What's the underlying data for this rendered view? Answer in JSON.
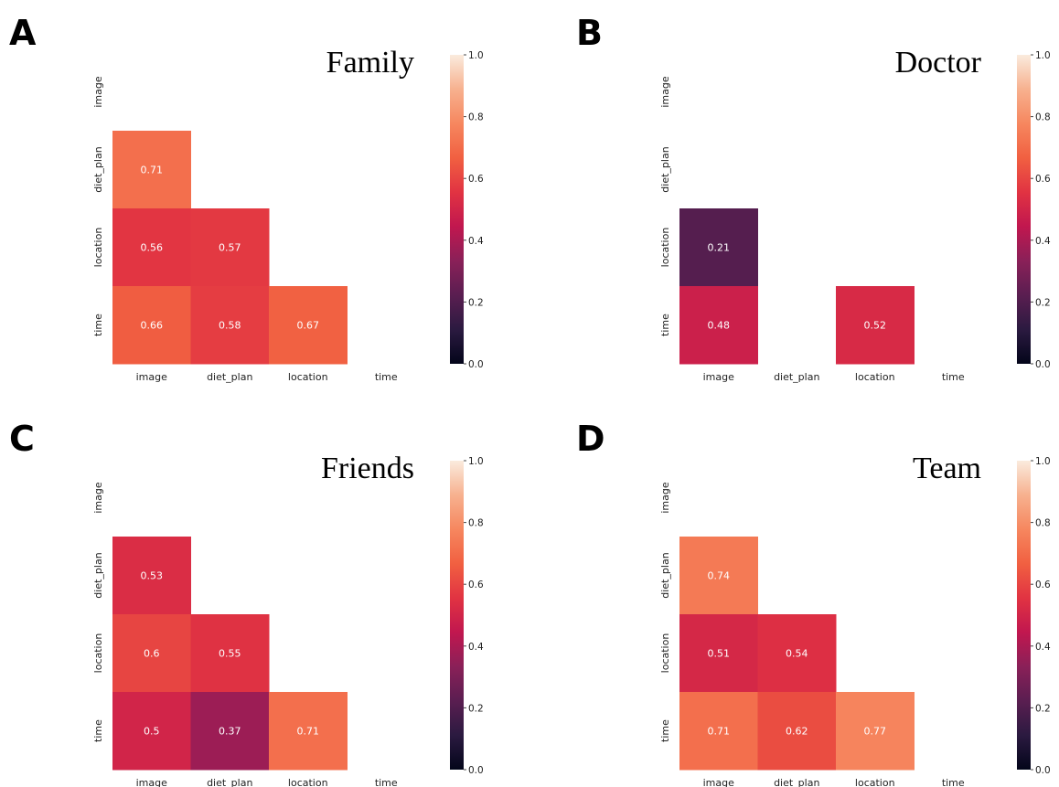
{
  "chart_data": [
    {
      "type": "heatmap",
      "panel_label": "A",
      "title": "Family",
      "x_tick_labels": [
        "image",
        "diet_plan",
        "location",
        "time"
      ],
      "y_tick_labels": [
        "image",
        "diet_plan",
        "location",
        "time"
      ],
      "cells": [
        {
          "row": "diet_plan",
          "col": "image",
          "value": 0.71
        },
        {
          "row": "location",
          "col": "image",
          "value": 0.56
        },
        {
          "row": "location",
          "col": "diet_plan",
          "value": 0.57
        },
        {
          "row": "time",
          "col": "image",
          "value": 0.66
        },
        {
          "row": "time",
          "col": "diet_plan",
          "value": 0.58
        },
        {
          "row": "time",
          "col": "location",
          "value": 0.67
        }
      ],
      "colorbar": {
        "range": [
          0.0,
          1.0
        ],
        "ticks": [
          "0.0",
          "0.2",
          "0.4",
          "0.6",
          "0.8",
          "1.0"
        ]
      },
      "mask": "lower triangle shown, diagonal hidden"
    },
    {
      "type": "heatmap",
      "panel_label": "B",
      "title": "Doctor",
      "x_tick_labels": [
        "image",
        "diet_plan",
        "location",
        "time"
      ],
      "y_tick_labels": [
        "image",
        "diet_plan",
        "location",
        "time"
      ],
      "cells": [
        {
          "row": "location",
          "col": "image",
          "value": 0.21
        },
        {
          "row": "time",
          "col": "image",
          "value": 0.48
        },
        {
          "row": "time",
          "col": "location",
          "value": 0.52
        }
      ],
      "colorbar": {
        "range": [
          0.0,
          1.0
        ],
        "ticks": [
          "0.0",
          "0.2",
          "0.4",
          "0.6",
          "0.8",
          "1.0"
        ]
      },
      "mask": "lower triangle shown, diagonal hidden"
    },
    {
      "type": "heatmap",
      "panel_label": "C",
      "title": "Friends",
      "x_tick_labels": [
        "image",
        "diet_plan",
        "location",
        "time"
      ],
      "y_tick_labels": [
        "image",
        "diet_plan",
        "location",
        "time"
      ],
      "cells": [
        {
          "row": "diet_plan",
          "col": "image",
          "value": 0.53
        },
        {
          "row": "location",
          "col": "image",
          "value": 0.6
        },
        {
          "row": "location",
          "col": "diet_plan",
          "value": 0.55
        },
        {
          "row": "time",
          "col": "image",
          "value": 0.5
        },
        {
          "row": "time",
          "col": "diet_plan",
          "value": 0.37
        },
        {
          "row": "time",
          "col": "location",
          "value": 0.71
        }
      ],
      "colorbar": {
        "range": [
          0.0,
          1.0
        ],
        "ticks": [
          "0.0",
          "0.2",
          "0.4",
          "0.6",
          "0.8",
          "1.0"
        ]
      },
      "mask": "lower triangle shown, diagonal hidden"
    },
    {
      "type": "heatmap",
      "panel_label": "D",
      "title": "Team",
      "x_tick_labels": [
        "image",
        "diet_plan",
        "location",
        "time"
      ],
      "y_tick_labels": [
        "image",
        "diet_plan",
        "location",
        "time"
      ],
      "cells": [
        {
          "row": "diet_plan",
          "col": "image",
          "value": 0.74
        },
        {
          "row": "location",
          "col": "image",
          "value": 0.51
        },
        {
          "row": "location",
          "col": "diet_plan",
          "value": 0.54
        },
        {
          "row": "time",
          "col": "image",
          "value": 0.71
        },
        {
          "row": "time",
          "col": "diet_plan",
          "value": 0.62
        },
        {
          "row": "time",
          "col": "location",
          "value": 0.77
        }
      ],
      "colorbar": {
        "range": [
          0.0,
          1.0
        ],
        "ticks": [
          "0.0",
          "0.2",
          "0.4",
          "0.6",
          "0.8",
          "1.0"
        ]
      },
      "mask": "lower triangle shown, diagonal hidden"
    }
  ],
  "colormap": {
    "name": "rocket",
    "stops": [
      "#03051a",
      "#2b1a40",
      "#5a1e51",
      "#8a2058",
      "#c1174f",
      "#e13342",
      "#f16041",
      "#f6875f",
      "#f7b18f",
      "#faebdd"
    ]
  }
}
